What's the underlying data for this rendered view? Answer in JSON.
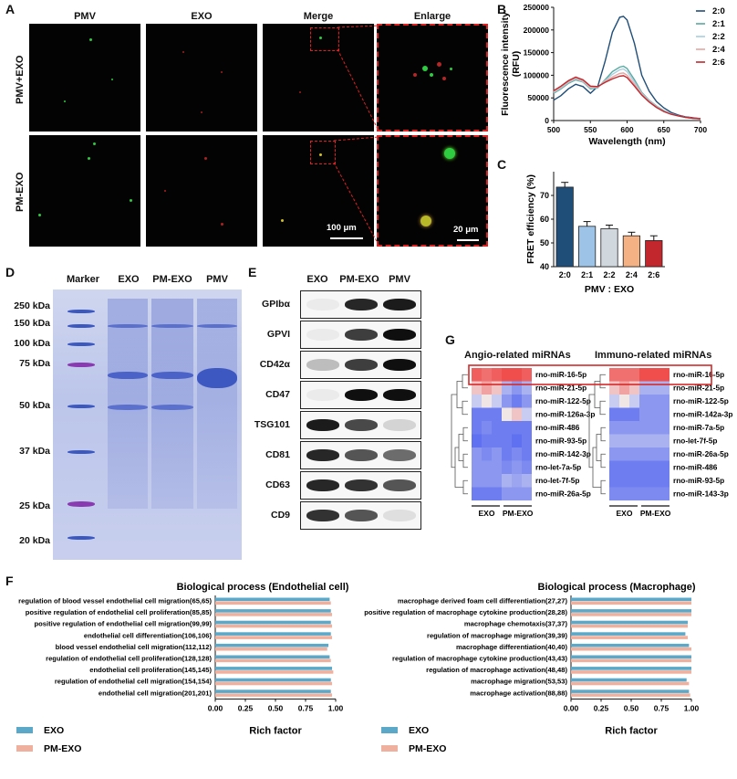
{
  "panels": {
    "A": "A",
    "B": "B",
    "C": "C",
    "D": "D",
    "E": "E",
    "F": "F",
    "G": "G"
  },
  "panel_a": {
    "columns": [
      "PMV",
      "EXO",
      "Merge",
      "Enlarge"
    ],
    "rows": [
      "PMV+EXO",
      "PM-EXO"
    ],
    "scale_bar_1": "100 μm",
    "scale_bar_2": "20 μm"
  },
  "panel_d": {
    "lanes": [
      "Marker",
      "EXO",
      "PM-EXO",
      "PMV"
    ],
    "markers": [
      "250 kDa",
      "150 kDa",
      "100 kDa",
      "75 kDa",
      "50 kDa",
      "37 kDa",
      "25 kDa",
      "20 kDa"
    ]
  },
  "panel_e": {
    "lanes": [
      "EXO",
      "PM-EXO",
      "PMV"
    ],
    "proteins": [
      "GPIbα",
      "GPVI",
      "CD42α",
      "CD47",
      "TSG101",
      "CD81",
      "CD63",
      "CD9"
    ]
  },
  "panel_g": {
    "left_title": "Angio-related miRNAs",
    "right_title": "Immuno-related miRNAs",
    "left_mirnas": [
      "rno-miR-16-5p",
      "rno-miR-21-5p",
      "rno-miR-122-5p",
      "rno-miR-126a-3p",
      "rno-miR-486",
      "rno-miR-93-5p",
      "rno-miR-142-3p",
      "rno-let-7a-5p",
      "rno-let-7f-5p",
      "rno-miR-26a-5p"
    ],
    "right_mirnas": [
      "rno-miR-16-5p",
      "rno-miR-21-5p",
      "rno-miR-122-5p",
      "rno-miR-142a-3p",
      "rno-miR-7a-5p",
      "rno-let-7f-5p",
      "rno-miR-26a-5p",
      "rno-miR-486",
      "rno-miR-93-5p",
      "rno-miR-143-3p"
    ],
    "groups": [
      "EXO",
      "PM-EXO"
    ]
  },
  "legend": {
    "exo": "EXO",
    "pmexo": "PM-EXO"
  },
  "chart_data": [
    {
      "id": "B",
      "type": "line",
      "xlabel": "Wavelength (nm)",
      "ylabel": "Fluorescence intensity (RFU)",
      "xlim": [
        500,
        700
      ],
      "ylim": [
        0,
        250000
      ],
      "xticks": [
        500,
        550,
        600,
        650,
        700
      ],
      "yticks": [
        0,
        50000,
        100000,
        150000,
        200000,
        250000
      ],
      "ytick_labels": [
        "0",
        "50000",
        "100000",
        "150000",
        "200000",
        "250000"
      ],
      "x": [
        500,
        510,
        520,
        530,
        540,
        550,
        560,
        570,
        580,
        590,
        595,
        600,
        610,
        620,
        630,
        640,
        650,
        660,
        670,
        680,
        690,
        700
      ],
      "series": [
        {
          "name": "2:0",
          "color": "#1f4e79",
          "values": [
            45000,
            55000,
            70000,
            80000,
            75000,
            60000,
            75000,
            130000,
            195000,
            228000,
            230000,
            222000,
            170000,
            100000,
            65000,
            42000,
            28000,
            18000,
            12000,
            8000,
            6000,
            4000
          ]
        },
        {
          "name": "2:1",
          "color": "#5aa9a0",
          "values": [
            60000,
            70000,
            82000,
            90000,
            85000,
            70000,
            72000,
            90000,
            108000,
            118000,
            120000,
            115000,
            90000,
            62000,
            45000,
            32000,
            22000,
            15000,
            10000,
            7000,
            5000,
            4000
          ]
        },
        {
          "name": "2:2",
          "color": "#a7cfe0",
          "values": [
            62000,
            72000,
            84000,
            92000,
            86000,
            72000,
            73000,
            88000,
            102000,
            112000,
            114000,
            108000,
            85000,
            60000,
            44000,
            31000,
            21000,
            15000,
            10000,
            7000,
            5000,
            4000
          ]
        },
        {
          "name": "2:4",
          "color": "#e8a5a0",
          "values": [
            64000,
            74000,
            86000,
            94000,
            88000,
            74000,
            74000,
            86000,
            96000,
            104000,
            105000,
            100000,
            80000,
            58000,
            42000,
            30000,
            20000,
            14000,
            10000,
            7000,
            5000,
            4000
          ]
        },
        {
          "name": "2:6",
          "color": "#c1272d",
          "values": [
            66000,
            76000,
            88000,
            96000,
            90000,
            76000,
            75000,
            84000,
            92000,
            98000,
            99000,
            95000,
            76000,
            56000,
            41000,
            29000,
            20000,
            14000,
            10000,
            7000,
            5000,
            4000
          ]
        }
      ],
      "legend_position": "right"
    },
    {
      "id": "C",
      "type": "bar",
      "xlabel": "PMV : EXO",
      "ylabel": "FRET efficiency (%)",
      "ylim": [
        40,
        80
      ],
      "yticks": [
        40,
        50,
        60,
        70
      ],
      "categories": [
        "2:0",
        "2:1",
        "2:2",
        "2:4",
        "2:6"
      ],
      "values": [
        73.5,
        57,
        56,
        53,
        51
      ],
      "errors": [
        2,
        2,
        1.5,
        1.5,
        2
      ],
      "colors": [
        "#1f4e79",
        "#9dc3e6",
        "#d0d8de",
        "#f4b183",
        "#c1272d"
      ]
    },
    {
      "id": "F1",
      "type": "bar",
      "title": "Biological process (Endothelial cell)",
      "xlabel": "Rich factor",
      "xlim": [
        0,
        1
      ],
      "xticks": [
        0.0,
        0.25,
        0.5,
        0.75,
        1.0
      ],
      "xtick_labels": [
        "0.00",
        "0.25",
        "0.50",
        "0.75",
        "1.00"
      ],
      "categories": [
        "regulation of blood vessel endothelial cell migration(65,65)",
        "positive regulation of endothelial cell proliferation(85,85)",
        "positive regulation of endothelial cell migration(99,99)",
        "endothelial cell differentiation(106,106)",
        "blood vessel endothelial cell migration(112,112)",
        "regulation of endothelial cell proliferation(128,128)",
        "endothelial cell proliferation(145,145)",
        "regulation of endothelial cell migration(154,154)",
        "endothelial cell migration(201,201)"
      ],
      "series": [
        {
          "name": "EXO",
          "values": [
            0.95,
            0.96,
            0.96,
            0.96,
            0.94,
            0.95,
            0.97,
            0.96,
            0.96
          ]
        },
        {
          "name": "PM-EXO",
          "values": [
            0.96,
            0.97,
            0.97,
            0.97,
            0.93,
            0.96,
            0.98,
            0.97,
            0.97
          ]
        }
      ]
    },
    {
      "id": "F2",
      "type": "bar",
      "title": "Biological process (Macrophage)",
      "xlabel": "Rich factor",
      "xlim": [
        0,
        1
      ],
      "xticks": [
        0.0,
        0.25,
        0.5,
        0.75,
        1.0
      ],
      "xtick_labels": [
        "0.00",
        "0.25",
        "0.50",
        "0.75",
        "1.00"
      ],
      "categories": [
        "macrophage derived foam cell differentiation(27,27)",
        "positive regulation of macrophage cytokine production(28,28)",
        "macrophage chemotaxis(37,37)",
        "regulation of macrophage migration(39,39)",
        "macrophage differentiation(40,40)",
        "regulation of macrophage cytokine production(43,43)",
        "regulation of macrophage activation(48,48)",
        "macrophage migration(53,53)",
        "macrophage activation(88,88)"
      ],
      "series": [
        {
          "name": "EXO",
          "values": [
            1.0,
            1.0,
            0.97,
            0.95,
            0.98,
            1.0,
            1.0,
            0.96,
            0.98
          ]
        },
        {
          "name": "PM-EXO",
          "values": [
            1.0,
            1.0,
            0.97,
            0.97,
            1.0,
            1.0,
            1.0,
            0.98,
            0.99
          ]
        }
      ]
    }
  ]
}
